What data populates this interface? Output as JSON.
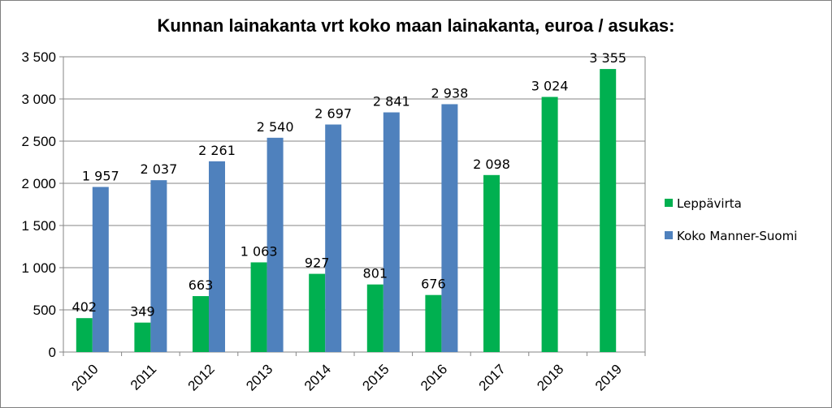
{
  "chart_data": {
    "type": "bar",
    "title": "Kunnan lainakanta vrt koko maan lainakanta, euroa / asukas:",
    "xlabel": "",
    "ylabel": "",
    "ylim": [
      0,
      3500
    ],
    "y_ticks": [
      0,
      500,
      1000,
      1500,
      2000,
      2500,
      3000,
      3500
    ],
    "y_tick_labels": [
      "0",
      "500",
      "1 000",
      "1 500",
      "2 000",
      "2 500",
      "3 000",
      "3 500"
    ],
    "grid": true,
    "legend_position": "right",
    "categories": [
      "2010",
      "2011",
      "2012",
      "2013",
      "2014",
      "2015",
      "2016",
      "2017",
      "2018",
      "2019"
    ],
    "series": [
      {
        "name": "Leppävirta",
        "color": "#00b050",
        "values": [
          402,
          349,
          663,
          1063,
          927,
          801,
          676,
          2098,
          3024,
          3355
        ],
        "labels": [
          "402",
          "349",
          "663",
          "1 063",
          "927",
          "801",
          "676",
          "2 098",
          "3 024",
          "3 355"
        ]
      },
      {
        "name": "Koko Manner-Suomi",
        "color": "#4f81bd",
        "values": [
          1957,
          2037,
          2261,
          2540,
          2697,
          2841,
          2938,
          null,
          null,
          null
        ],
        "labels": [
          "1 957",
          "2 037",
          "2 261",
          "2 540",
          "2 697",
          "2 841",
          "2 938",
          null,
          null,
          null
        ]
      }
    ]
  }
}
